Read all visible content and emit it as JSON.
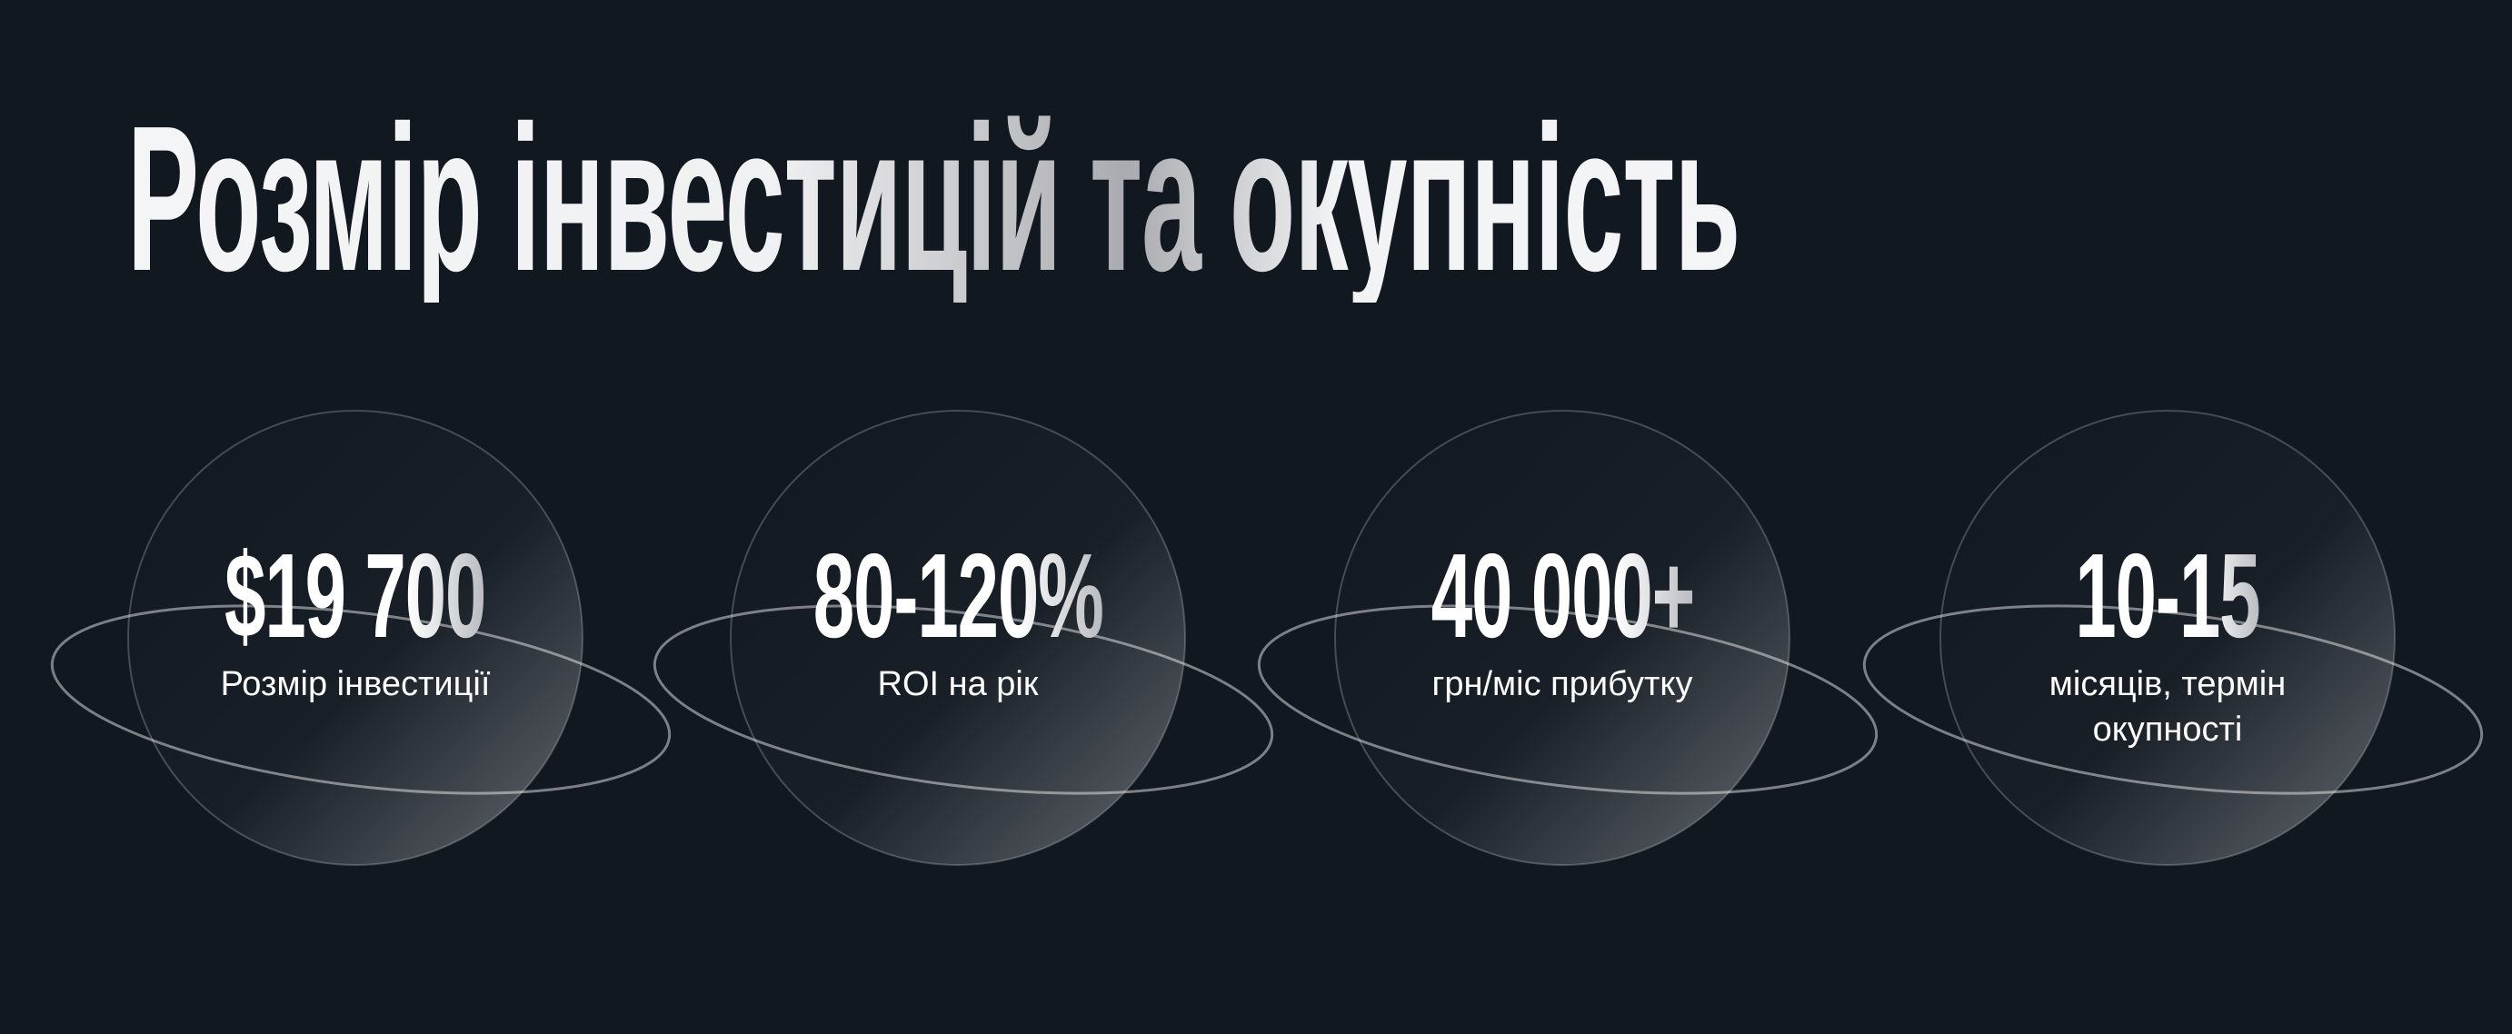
{
  "title": "Розмір інвестицій та окупність",
  "colors": {
    "background": "#111820",
    "text": "#ffffff"
  },
  "stats": [
    {
      "value": "$19 700",
      "label": "Розмір інвестиції"
    },
    {
      "value": "80-120%",
      "label": "ROI на рік"
    },
    {
      "value": "40 000+",
      "label": "грн/міс прибутку"
    },
    {
      "value": "10-15",
      "label": "місяців, термін окупності"
    }
  ]
}
